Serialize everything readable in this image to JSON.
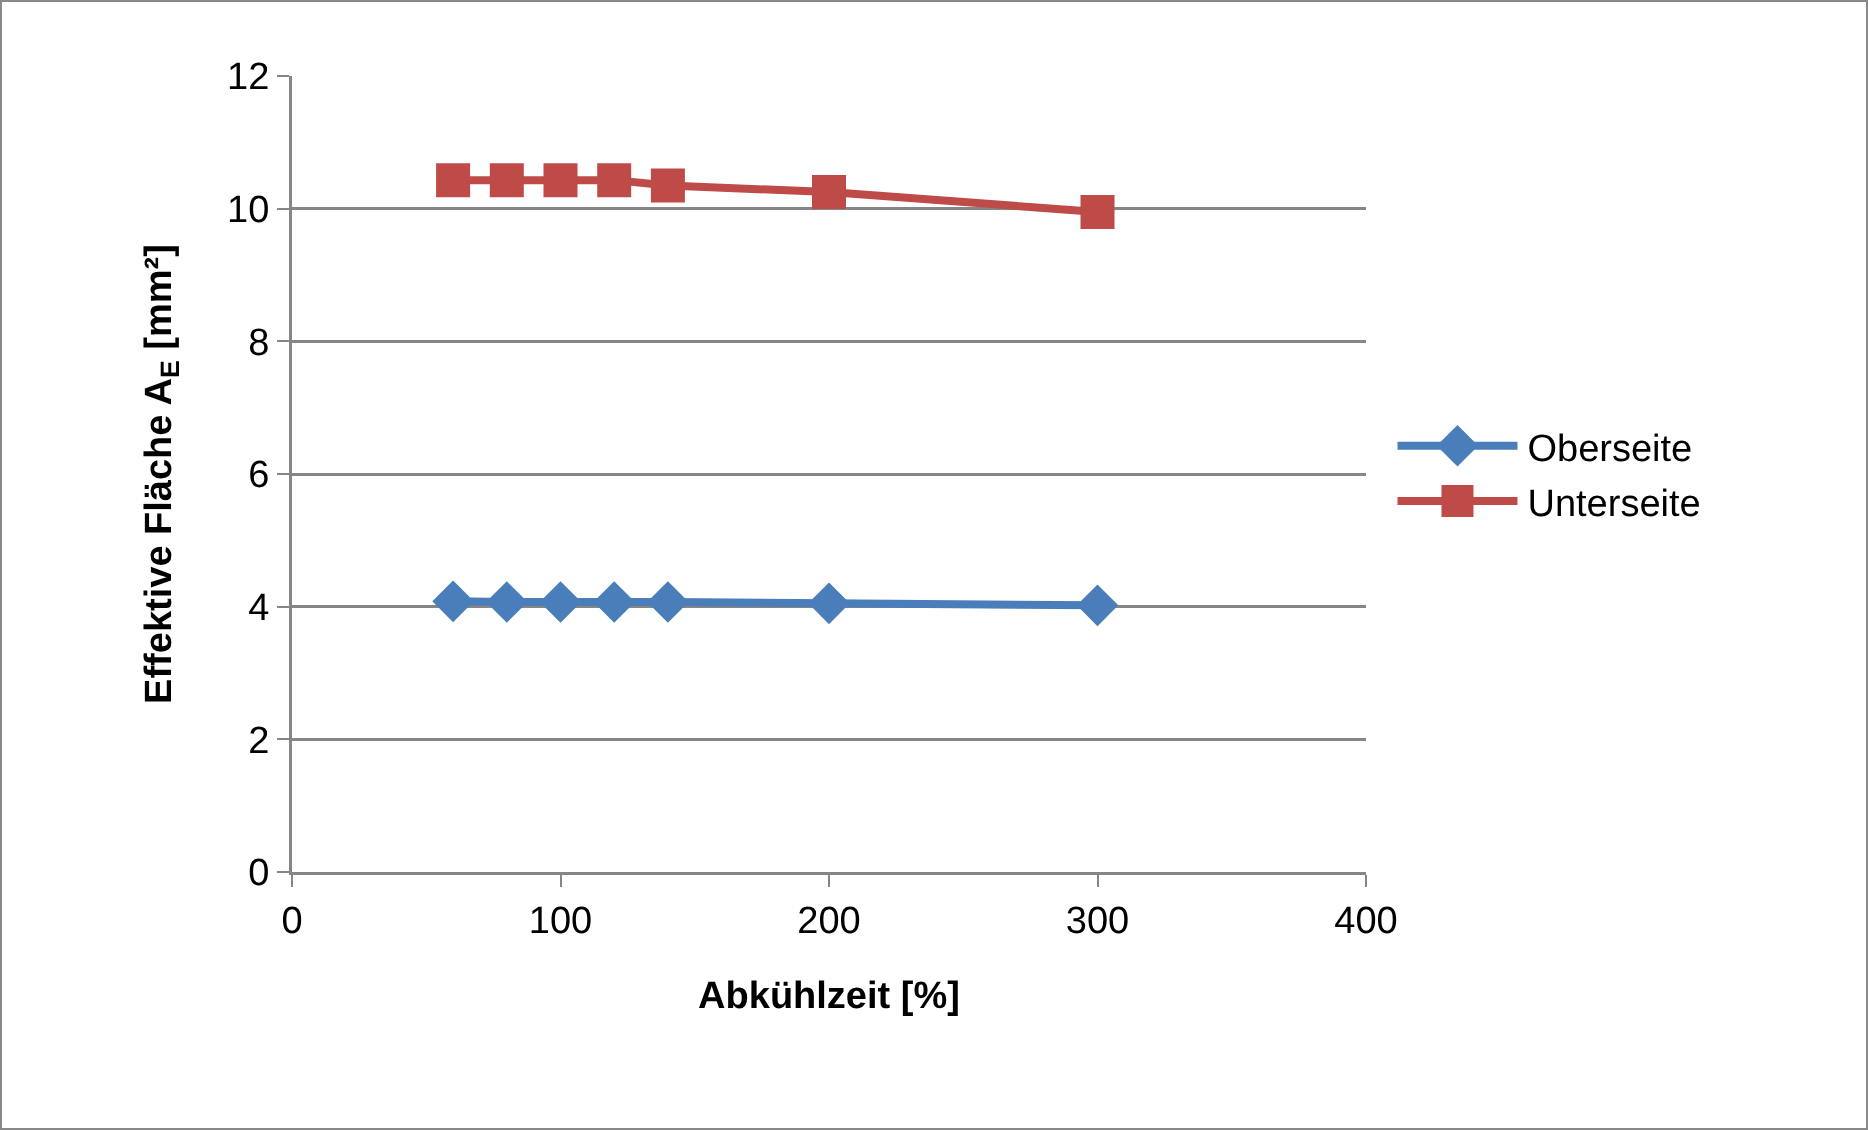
{
  "chart_data": {
    "type": "line",
    "xlabel": "Abkühlzeit [%]",
    "ylabel": "Effektive Fläche A$_{E}$ [mm²]",
    "xlim": [
      0,
      400
    ],
    "xticks": [
      0,
      100,
      200,
      300,
      400
    ],
    "ylim": [
      0,
      12
    ],
    "yticks": [
      0,
      2,
      4,
      6,
      8,
      10,
      12
    ],
    "grid": "y",
    "legend": "right",
    "series": [
      {
        "name": "Oberseite",
        "color": "#4a7ebb",
        "marker": "diamond",
        "x": [
          60,
          80,
          100,
          120,
          140,
          200,
          300
        ],
        "values": [
          4.08,
          4.07,
          4.07,
          4.07,
          4.07,
          4.05,
          4.02
        ]
      },
      {
        "name": "Unterseite",
        "color": "#be4b48",
        "marker": "square",
        "x": [
          60,
          80,
          100,
          120,
          140,
          200,
          300
        ],
        "values": [
          10.43,
          10.43,
          10.43,
          10.43,
          10.35,
          10.25,
          9.95
        ]
      }
    ]
  }
}
